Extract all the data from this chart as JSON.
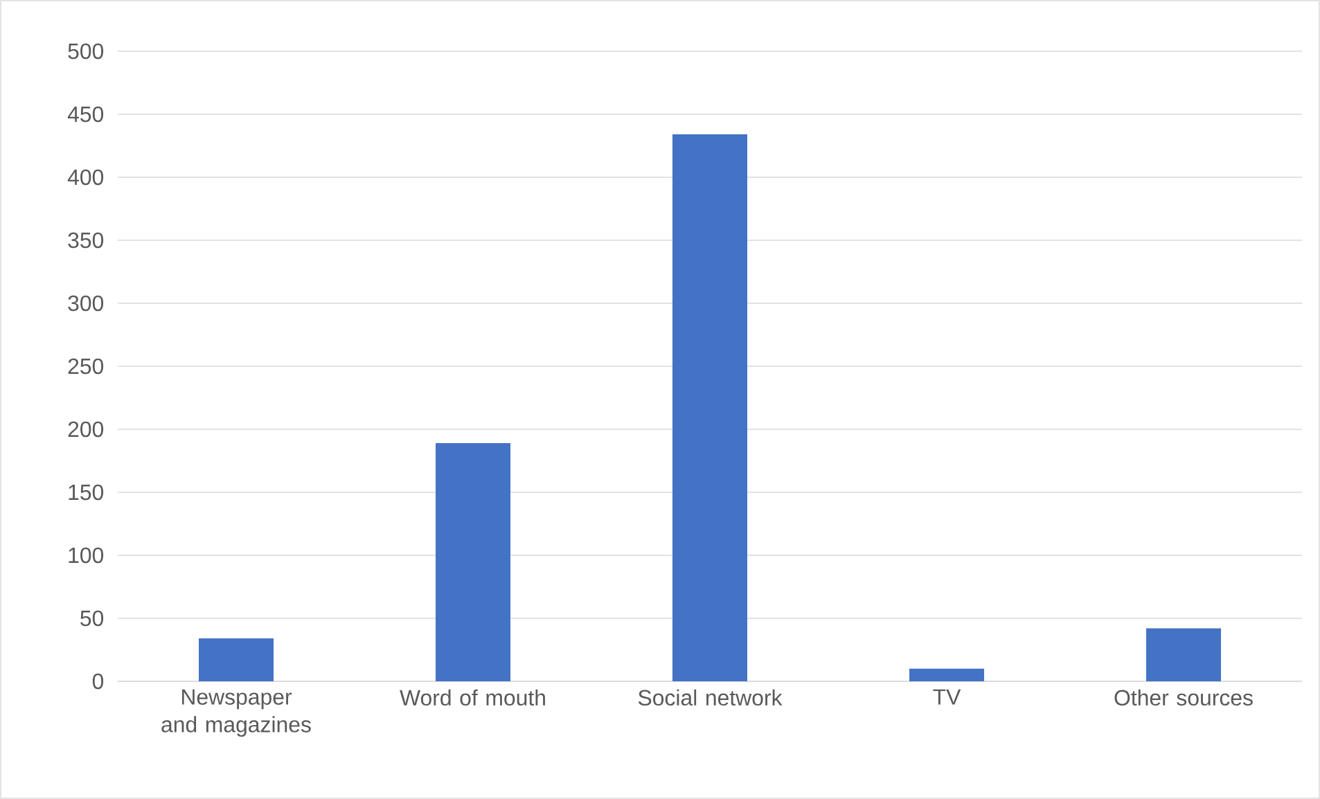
{
  "chart_data": {
    "type": "bar",
    "categories": [
      "Newspaper and magazines",
      "Word of mouth",
      "Social network",
      "TV",
      "Other sources"
    ],
    "values": [
      34,
      189,
      434,
      10,
      42
    ],
    "color": "#4472c4",
    "ylim": [
      0,
      500
    ],
    "yticks": [
      0,
      50,
      100,
      150,
      200,
      250,
      300,
      350,
      400,
      450,
      500
    ],
    "grid": "y"
  }
}
